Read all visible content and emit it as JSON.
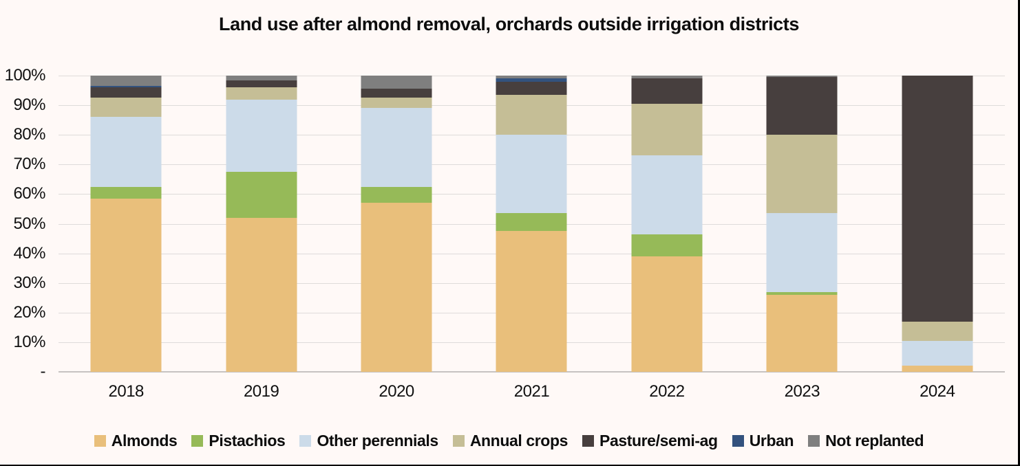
{
  "page": {
    "background_color": "#FFF9F7",
    "grid_color": "#DEDBDA",
    "baseline_color": "#C6C2C1",
    "text_color": "#111111"
  },
  "chart_data": {
    "type": "bar",
    "stacked": true,
    "units": "percent_of_total",
    "title": "Land use after almond removal, orchards outside irrigation districts",
    "categories": [
      "2018",
      "2019",
      "2020",
      "2021",
      "2022",
      "2023",
      "2024"
    ],
    "series": [
      {
        "name": "Almonds",
        "color": "#E9BF7B",
        "values": [
          58.5,
          52.0,
          57.0,
          47.5,
          39.0,
          26.0,
          2.0
        ]
      },
      {
        "name": "Pistachios",
        "color": "#96BA58",
        "values": [
          4.0,
          15.5,
          5.5,
          6.0,
          7.5,
          1.0,
          0.0
        ]
      },
      {
        "name": "Other perennials",
        "color": "#CCDBE9",
        "values": [
          23.5,
          24.5,
          26.5,
          26.5,
          26.5,
          26.5,
          8.5
        ]
      },
      {
        "name": "Annual crops",
        "color": "#C5BE96",
        "values": [
          6.5,
          4.0,
          3.5,
          13.5,
          17.5,
          26.5,
          6.5
        ]
      },
      {
        "name": "Pasture/semi-ag",
        "color": "#473F3E",
        "values": [
          3.5,
          2.5,
          3.0,
          4.5,
          8.5,
          19.5,
          83.0
        ]
      },
      {
        "name": "Urban",
        "color": "#33527E",
        "values": [
          0.5,
          0.0,
          0.0,
          1.0,
          0.0,
          0.0,
          0.0
        ]
      },
      {
        "name": "Not replanted",
        "color": "#7F7F7F",
        "values": [
          3.5,
          1.5,
          4.5,
          1.0,
          1.0,
          0.5,
          0.0
        ]
      }
    ],
    "ylim": [
      0,
      100
    ],
    "y_tick_interval": 10,
    "y_tick_labels": [
      "100%",
      "90%",
      "80%",
      "70%",
      "60%",
      "50%",
      "40%",
      "30%",
      "20%",
      "10%",
      "-"
    ],
    "grid": true,
    "legend_position": "bottom"
  }
}
